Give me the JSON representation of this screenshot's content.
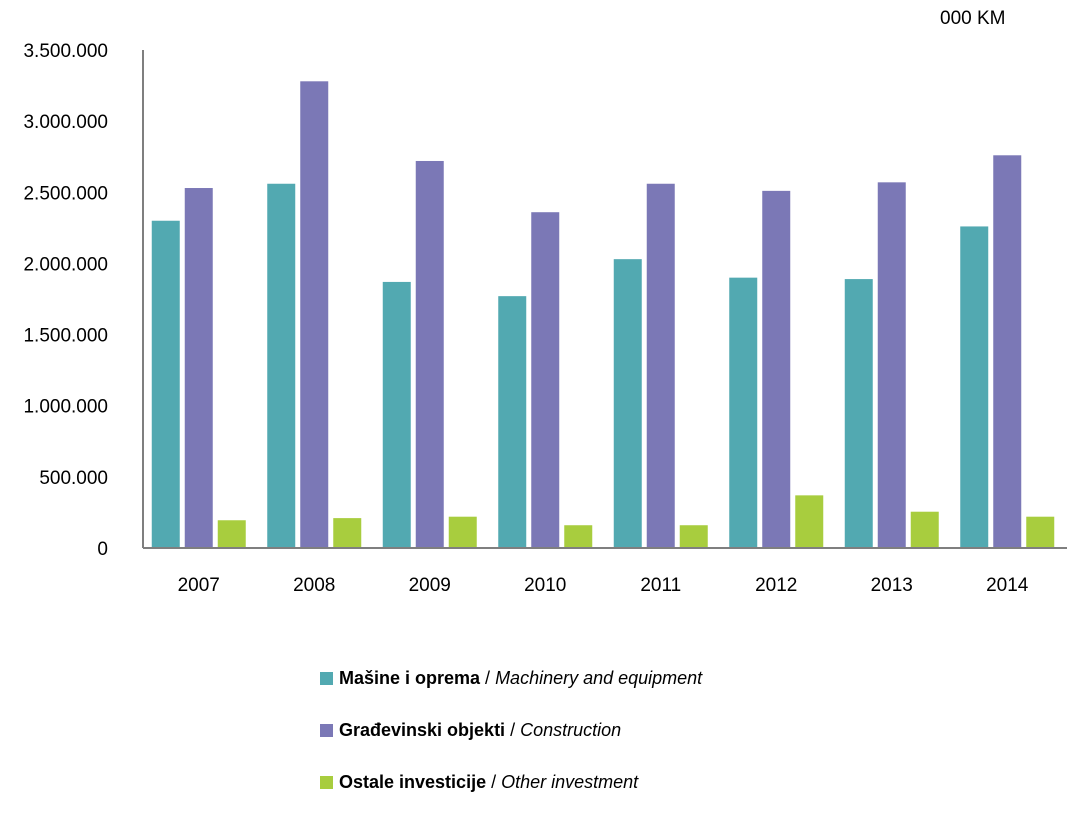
{
  "unit_label": "000 KM",
  "legend": [
    {
      "bold": "Mašine i oprema",
      "sep": " / ",
      "italic": "Machinery and equipment",
      "color": "#52A9B1"
    },
    {
      "bold": "Građevinski objekti",
      "sep": " / ",
      "italic": "Construction",
      "color": "#7B78B6"
    },
    {
      "bold": "Ostale investicije",
      "sep": " / ",
      "italic": "Other investment",
      "color": "#A8CD3E"
    }
  ],
  "chart_data": {
    "type": "bar",
    "categories": [
      "2007",
      "2008",
      "2009",
      "2010",
      "2011",
      "2012",
      "2013",
      "2014"
    ],
    "series": [
      {
        "name": "Mašine i oprema / Machinery and equipment",
        "color": "#52A9B1",
        "values": [
          2300000,
          2560000,
          1870000,
          1770000,
          2030000,
          1900000,
          1890000,
          2260000
        ]
      },
      {
        "name": "Građevinski objekti / Construction",
        "color": "#7B78B6",
        "values": [
          2530000,
          3280000,
          2720000,
          2360000,
          2560000,
          2510000,
          2570000,
          2760000
        ]
      },
      {
        "name": "Ostale investicije / Other investment",
        "color": "#A8CD3E",
        "values": [
          195000,
          210000,
          220000,
          160000,
          160000,
          370000,
          255000,
          220000
        ]
      }
    ],
    "ylim": [
      0,
      3500000
    ],
    "yticks": [
      {
        "value": 0,
        "label": "0"
      },
      {
        "value": 500000,
        "label": "500.000"
      },
      {
        "value": 1000000,
        "label": "1.000.000"
      },
      {
        "value": 1500000,
        "label": "1.500.000"
      },
      {
        "value": 2000000,
        "label": "2.000.000"
      },
      {
        "value": 2500000,
        "label": "2.500.000"
      },
      {
        "value": 3000000,
        "label": "3.000.000"
      },
      {
        "value": 3500000,
        "label": "3.500.000"
      }
    ],
    "grid": false,
    "legend_position": "bottom",
    "title": "",
    "xlabel": "",
    "ylabel": ""
  }
}
